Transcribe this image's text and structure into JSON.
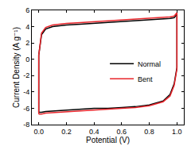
{
  "chart_data": {
    "type": "line",
    "x_label": "Potential (V)",
    "y_label": "Current Density (A g⁻¹)",
    "x": [
      0,
      0,
      0.02,
      0.05,
      0.1,
      0.2,
      0.3,
      0.4,
      0.5,
      0.6,
      0.7,
      0.8,
      0.9,
      0.95,
      0.98,
      1.0,
      1.0,
      0.98,
      0.95,
      0.9,
      0.8,
      0.7,
      0.6,
      0.5,
      0.4,
      0.3,
      0.2,
      0.1,
      0.05,
      0.02,
      0
    ],
    "series": [
      {
        "name": "Normal",
        "color": "#000000",
        "values": [
          -6.5,
          0.5,
          3.0,
          3.7,
          4.0,
          4.2,
          4.3,
          4.4,
          4.5,
          4.6,
          4.7,
          4.8,
          4.9,
          5.0,
          5.1,
          5.5,
          -1.0,
          -3.0,
          -4.3,
          -5.1,
          -5.6,
          -5.8,
          -5.9,
          -6.0,
          -6.0,
          -6.1,
          -6.2,
          -6.3,
          -6.4,
          -6.5,
          -6.5
        ]
      },
      {
        "name": "Bent",
        "color": "#e8242a",
        "values": [
          -6.7,
          0.5,
          3.2,
          3.9,
          4.2,
          4.4,
          4.5,
          4.6,
          4.7,
          4.8,
          4.9,
          5.0,
          5.1,
          5.2,
          5.3,
          5.7,
          -1.2,
          -3.2,
          -4.5,
          -5.2,
          -5.7,
          -5.9,
          -6.0,
          -6.1,
          -6.2,
          -6.3,
          -6.4,
          -6.5,
          -6.6,
          -6.7,
          -6.7
        ]
      }
    ],
    "xlim": [
      -0.05,
      1.05
    ],
    "xticks": [
      {
        "value": 0,
        "label": "0.0"
      },
      0.2,
      0.4,
      0.6,
      0.8,
      {
        "value": 1,
        "label": "1.0"
      }
    ],
    "ylim": [
      -8,
      6
    ],
    "yticks": [
      -8,
      -6,
      -4,
      -2,
      0,
      2,
      4,
      6
    ],
    "grid": false,
    "legend": "lower right"
  }
}
